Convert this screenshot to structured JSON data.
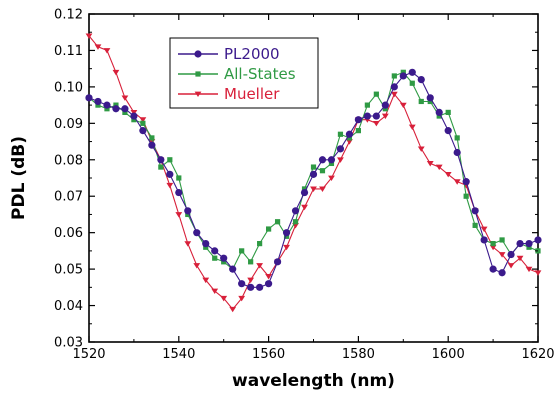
{
  "chart_data": {
    "type": "line",
    "xlabel": "wavelength (nm)",
    "ylabel": "PDL (dB)",
    "xlim": [
      1520,
      1620
    ],
    "ylim": [
      0.03,
      0.12
    ],
    "xticks": [
      1520,
      1540,
      1560,
      1580,
      1600,
      1620
    ],
    "yticks": [
      0.03,
      0.04,
      0.05,
      0.06,
      0.07,
      0.08,
      0.09,
      0.1,
      0.11,
      0.12
    ],
    "xtick_labels": [
      "1520",
      "1540",
      "1560",
      "1580",
      "1600",
      "1620"
    ],
    "ytick_labels": [
      "0.03",
      "0.04",
      "0.05",
      "0.06",
      "0.07",
      "0.08",
      "0.09",
      "0.10",
      "0.11",
      "0.12"
    ],
    "legend_position": "top-left",
    "grid": false,
    "series": [
      {
        "name": "PL2000",
        "color": "#3b1a8c",
        "marker": "circle",
        "points": [
          [
            1520,
            0.097
          ],
          [
            1522,
            0.096
          ],
          [
            1524,
            0.095
          ],
          [
            1526,
            0.094
          ],
          [
            1528,
            0.094
          ],
          [
            1530,
            0.092
          ],
          [
            1532,
            0.088
          ],
          [
            1534,
            0.084
          ],
          [
            1536,
            0.08
          ],
          [
            1538,
            0.076
          ],
          [
            1540,
            0.071
          ],
          [
            1542,
            0.066
          ],
          [
            1544,
            0.06
          ],
          [
            1546,
            0.057
          ],
          [
            1548,
            0.055
          ],
          [
            1550,
            0.053
          ],
          [
            1552,
            0.05
          ],
          [
            1554,
            0.046
          ],
          [
            1556,
            0.045
          ],
          [
            1558,
            0.045
          ],
          [
            1560,
            0.046
          ],
          [
            1562,
            0.052
          ],
          [
            1564,
            0.06
          ],
          [
            1566,
            0.066
          ],
          [
            1568,
            0.071
          ],
          [
            1570,
            0.076
          ],
          [
            1572,
            0.08
          ],
          [
            1574,
            0.08
          ],
          [
            1576,
            0.083
          ],
          [
            1578,
            0.087
          ],
          [
            1580,
            0.091
          ],
          [
            1582,
            0.092
          ],
          [
            1584,
            0.092
          ],
          [
            1586,
            0.095
          ],
          [
            1588,
            0.1
          ],
          [
            1590,
            0.103
          ],
          [
            1592,
            0.104
          ],
          [
            1594,
            0.102
          ],
          [
            1596,
            0.097
          ],
          [
            1598,
            0.093
          ],
          [
            1600,
            0.088
          ],
          [
            1602,
            0.082
          ],
          [
            1604,
            0.074
          ],
          [
            1606,
            0.066
          ],
          [
            1608,
            0.058
          ],
          [
            1610,
            0.05
          ],
          [
            1612,
            0.049
          ],
          [
            1614,
            0.054
          ],
          [
            1616,
            0.057
          ],
          [
            1618,
            0.057
          ],
          [
            1620,
            0.058
          ]
        ]
      },
      {
        "name": "All-States",
        "color": "#2f9a44",
        "marker": "square",
        "points": [
          [
            1520,
            0.097
          ],
          [
            1522,
            0.095
          ],
          [
            1524,
            0.094
          ],
          [
            1526,
            0.095
          ],
          [
            1528,
            0.093
          ],
          [
            1530,
            0.091
          ],
          [
            1532,
            0.09
          ],
          [
            1534,
            0.086
          ],
          [
            1536,
            0.078
          ],
          [
            1538,
            0.08
          ],
          [
            1540,
            0.075
          ],
          [
            1542,
            0.065
          ],
          [
            1544,
            0.06
          ],
          [
            1546,
            0.056
          ],
          [
            1548,
            0.053
          ],
          [
            1550,
            0.052
          ],
          [
            1552,
            0.05
          ],
          [
            1554,
            0.055
          ],
          [
            1556,
            0.052
          ],
          [
            1558,
            0.057
          ],
          [
            1560,
            0.061
          ],
          [
            1562,
            0.063
          ],
          [
            1564,
            0.059
          ],
          [
            1566,
            0.063
          ],
          [
            1568,
            0.072
          ],
          [
            1570,
            0.078
          ],
          [
            1572,
            0.077
          ],
          [
            1574,
            0.079
          ],
          [
            1576,
            0.087
          ],
          [
            1578,
            0.086
          ],
          [
            1580,
            0.088
          ],
          [
            1582,
            0.095
          ],
          [
            1584,
            0.098
          ],
          [
            1586,
            0.094
          ],
          [
            1588,
            0.103
          ],
          [
            1590,
            0.104
          ],
          [
            1592,
            0.101
          ],
          [
            1594,
            0.096
          ],
          [
            1596,
            0.096
          ],
          [
            1598,
            0.092
          ],
          [
            1600,
            0.093
          ],
          [
            1602,
            0.086
          ],
          [
            1604,
            0.07
          ],
          [
            1606,
            0.062
          ],
          [
            1608,
            0.058
          ],
          [
            1610,
            0.057
          ],
          [
            1612,
            0.058
          ],
          [
            1614,
            0.054
          ],
          [
            1616,
            0.057
          ],
          [
            1618,
            0.056
          ],
          [
            1620,
            0.055
          ]
        ]
      },
      {
        "name": "Mueller",
        "color": "#d8203a",
        "marker": "triangle-down",
        "points": [
          [
            1520,
            0.114
          ],
          [
            1522,
            0.111
          ],
          [
            1524,
            0.11
          ],
          [
            1526,
            0.104
          ],
          [
            1528,
            0.097
          ],
          [
            1530,
            0.093
          ],
          [
            1532,
            0.091
          ],
          [
            1534,
            0.085
          ],
          [
            1536,
            0.08
          ],
          [
            1538,
            0.073
          ],
          [
            1540,
            0.065
          ],
          [
            1542,
            0.057
          ],
          [
            1544,
            0.051
          ],
          [
            1546,
            0.047
          ],
          [
            1548,
            0.044
          ],
          [
            1550,
            0.042
          ],
          [
            1552,
            0.039
          ],
          [
            1554,
            0.042
          ],
          [
            1556,
            0.047
          ],
          [
            1558,
            0.051
          ],
          [
            1560,
            0.048
          ],
          [
            1562,
            0.052
          ],
          [
            1564,
            0.056
          ],
          [
            1566,
            0.062
          ],
          [
            1568,
            0.067
          ],
          [
            1570,
            0.072
          ],
          [
            1572,
            0.072
          ],
          [
            1574,
            0.075
          ],
          [
            1576,
            0.08
          ],
          [
            1578,
            0.085
          ],
          [
            1580,
            0.091
          ],
          [
            1582,
            0.091
          ],
          [
            1584,
            0.09
          ],
          [
            1586,
            0.092
          ],
          [
            1588,
            0.098
          ],
          [
            1590,
            0.095
          ],
          [
            1592,
            0.089
          ],
          [
            1594,
            0.083
          ],
          [
            1596,
            0.079
          ],
          [
            1598,
            0.078
          ],
          [
            1600,
            0.076
          ],
          [
            1602,
            0.074
          ],
          [
            1604,
            0.073
          ],
          [
            1606,
            0.066
          ],
          [
            1608,
            0.061
          ],
          [
            1610,
            0.056
          ],
          [
            1612,
            0.054
          ],
          [
            1614,
            0.051
          ],
          [
            1616,
            0.053
          ],
          [
            1618,
            0.05
          ],
          [
            1620,
            0.049
          ]
        ]
      }
    ]
  }
}
